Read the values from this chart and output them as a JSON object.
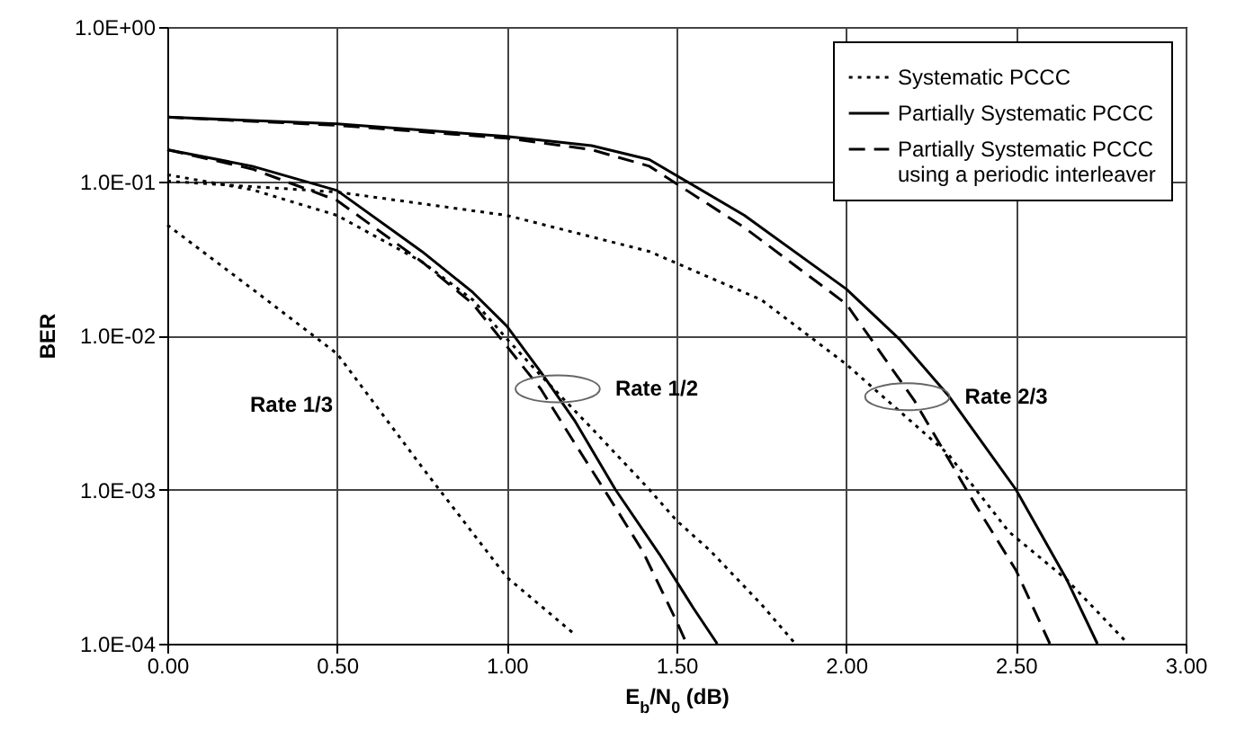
{
  "chart_data": {
    "type": "line",
    "xlabel": "E$_{b}$/N$_{0}$ (dB)",
    "ylabel": "BER",
    "log": "y",
    "grid": true,
    "legend": "top right",
    "marker": "none",
    "xlim": [
      0,
      3
    ],
    "xticks": [
      {
        "value": 0,
        "label": "0.00"
      },
      {
        "value": 0.5,
        "label": "0.50"
      },
      {
        "value": 1,
        "label": "1.00"
      },
      {
        "value": 1.5,
        "label": "1.50"
      },
      {
        "value": 2,
        "label": "2.00"
      },
      {
        "value": 2.5,
        "label": "2.50"
      },
      {
        "value": 3,
        "label": "3.00"
      }
    ],
    "ylim": [
      0.0001,
      1
    ],
    "yticks": [
      {
        "value": 0.0001,
        "label": "1.0E-04"
      },
      {
        "value": 0.001,
        "label": "1.0E-03"
      },
      {
        "value": 0.01,
        "label": "1.0E-02"
      },
      {
        "value": 0.1,
        "label": "1.0E-01"
      },
      {
        "value": 1,
        "label": "1.0E+00"
      }
    ],
    "series": [
      {
        "name": "Systematic PCCC",
        "color": "#000000",
        "line_style": "dotted",
        "x": [
          0,
          0.25,
          0.5,
          0.75,
          1.0,
          1.2
        ],
        "values": [
          0.052,
          0.02,
          0.0076,
          0.0014,
          0.00027,
          0.000115
        ]
      },
      {
        "name": "Partially Systematic PCCC",
        "color": "#000000",
        "line_style": "solid",
        "x": [
          0,
          0.25,
          0.5,
          0.75,
          0.9,
          1.0,
          1.1,
          1.2,
          1.32,
          1.45,
          1.55,
          1.62
        ],
        "values": [
          0.16,
          0.125,
          0.087,
          0.035,
          0.019,
          0.0115,
          0.0058,
          0.0028,
          0.001,
          0.00038,
          0.00017,
          0.0001
        ]
      },
      {
        "name": "Partially Systematic PCCC using a periodic interleaver",
        "color": "#000000",
        "line_style": "dashed",
        "x": [
          0,
          0.25,
          0.5,
          0.75,
          0.9,
          1.0,
          1.1,
          1.2,
          1.3,
          1.4,
          1.5,
          1.53
        ],
        "values": [
          0.16,
          0.12,
          0.075,
          0.03,
          0.016,
          0.0085,
          0.0045,
          0.002,
          0.0009,
          0.0004,
          0.00014,
          0.0001
        ]
      },
      {
        "color": "#000000",
        "line_style": "dotted",
        "x": [
          0,
          0.25,
          0.5,
          0.75,
          0.9,
          1.0,
          1.1,
          1.25,
          1.42,
          1.5,
          1.6,
          1.75,
          1.85
        ],
        "values": [
          0.11,
          0.088,
          0.06,
          0.03,
          0.017,
          0.0095,
          0.0055,
          0.0025,
          0.001,
          0.00063,
          0.0004,
          0.00018,
          0.0001
        ]
      },
      {
        "color": "#000000",
        "line_style": "solid",
        "x": [
          0,
          0.5,
          1.0,
          1.25,
          1.42,
          1.7,
          2.0,
          2.16,
          2.3,
          2.5,
          2.65,
          2.74
        ],
        "values": [
          0.26,
          0.235,
          0.195,
          0.17,
          0.138,
          0.06,
          0.02,
          0.0093,
          0.0041,
          0.001,
          0.00026,
          0.0001
        ]
      },
      {
        "color": "#000000",
        "line_style": "dashed",
        "x": [
          0,
          0.5,
          1.0,
          1.25,
          1.42,
          1.7,
          2.0,
          2.2,
          2.38,
          2.5,
          2.6
        ],
        "values": [
          0.26,
          0.23,
          0.19,
          0.16,
          0.125,
          0.05,
          0.016,
          0.0038,
          0.0008,
          0.0003,
          0.0001
        ]
      },
      {
        "color": "#000000",
        "line_style": "dotted",
        "x": [
          0,
          0.5,
          1.0,
          1.42,
          1.75,
          2.0,
          2.3,
          2.48,
          2.65,
          2.83
        ],
        "values": [
          0.1,
          0.085,
          0.06,
          0.035,
          0.017,
          0.0065,
          0.0017,
          0.00053,
          0.00026,
          0.0001
        ]
      }
    ],
    "annotations": [
      "Rate 1/3",
      {
        "text": "Rate 1/2",
        "x": 1.15,
        "y": 0.0045
      },
      {
        "text": "Rate 2/3",
        "x": 2.18,
        "y": 0.004
      }
    ]
  }
}
